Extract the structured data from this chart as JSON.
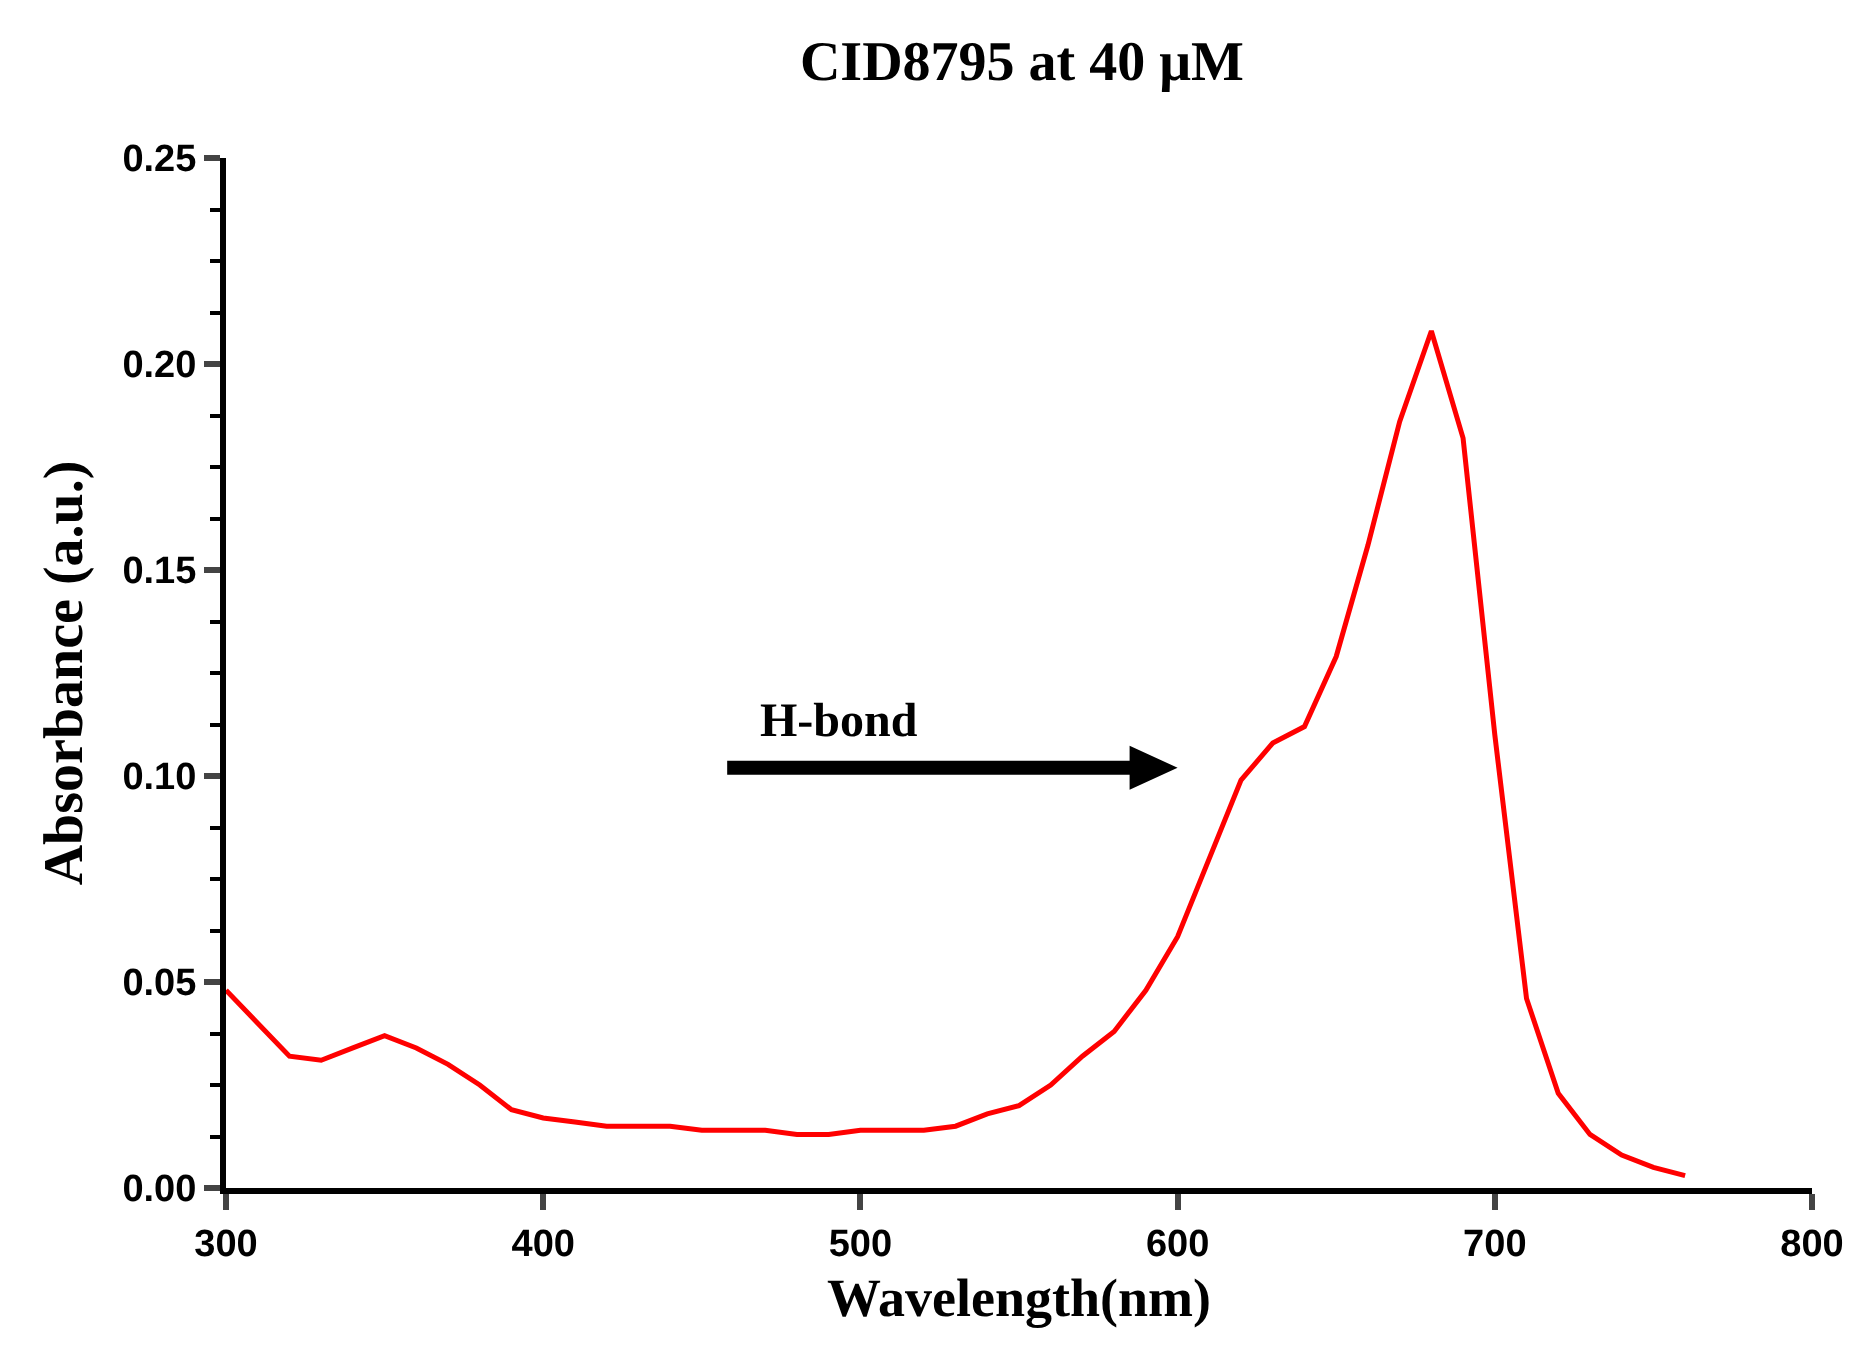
{
  "chart_data": {
    "type": "line",
    "title": "CID8795 at 40 μM",
    "xlabel": "Wavelength(nm)",
    "ylabel": "Absorbance (a.u.)",
    "annotations": [
      "H-bond"
    ],
    "x": [
      300,
      310,
      320,
      330,
      340,
      350,
      360,
      370,
      380,
      390,
      400,
      410,
      420,
      430,
      440,
      450,
      460,
      470,
      480,
      490,
      500,
      510,
      520,
      530,
      540,
      550,
      560,
      570,
      580,
      590,
      600,
      610,
      620,
      630,
      640,
      650,
      660,
      670,
      680,
      690,
      700,
      710,
      720,
      730,
      740,
      750,
      760
    ],
    "series": [
      {
        "color": "#ff0000",
        "values": [
          0.048,
          0.04,
          0.032,
          0.031,
          0.034,
          0.037,
          0.034,
          0.03,
          0.025,
          0.019,
          0.017,
          0.016,
          0.015,
          0.015,
          0.015,
          0.014,
          0.014,
          0.014,
          0.013,
          0.013,
          0.014,
          0.014,
          0.014,
          0.015,
          0.018,
          0.02,
          0.025,
          0.032,
          0.038,
          0.048,
          0.061,
          0.08,
          0.099,
          0.108,
          0.112,
          0.129,
          0.156,
          0.186,
          0.208,
          0.182,
          0.11,
          0.046,
          0.023,
          0.013,
          0.008,
          0.005,
          0.003
        ]
      }
    ],
    "xlim": [
      300,
      800
    ],
    "xticks": [
      300,
      400,
      500,
      600,
      700,
      800
    ],
    "ylim": [
      0,
      0.25
    ],
    "yticks": [
      {
        "value": 0,
        "label": "0.00"
      },
      {
        "value": 0.05,
        "label": "0.05"
      },
      {
        "value": 0.1,
        "label": "0.10"
      },
      {
        "value": 0.15,
        "label": "0.15"
      },
      {
        "value": 0.2,
        "label": "0.20"
      },
      {
        "value": 0.25,
        "label": "0.25"
      }
    ],
    "grid": false,
    "marker": "none",
    "line_style": "solid"
  }
}
